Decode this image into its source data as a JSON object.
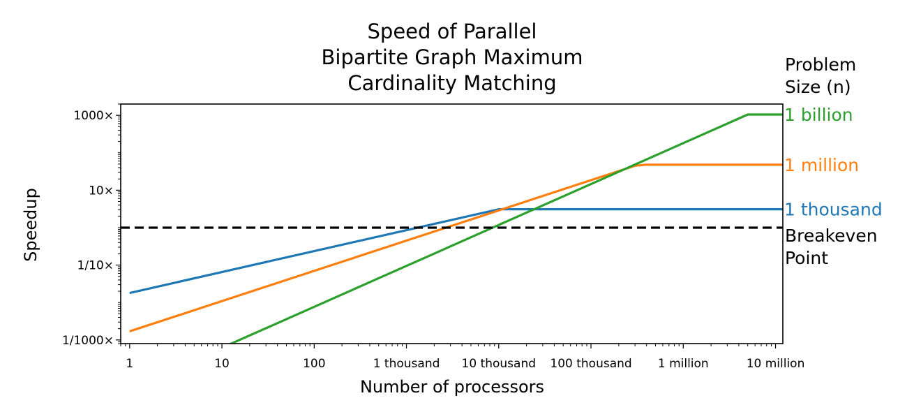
{
  "chart_data": {
    "type": "line",
    "title_lines": [
      "Speed of Parallel",
      "Bipartite Graph Maximum",
      "Cardinality Matching"
    ],
    "xlabel": "Number of processors",
    "ylabel": "Speedup",
    "x_scale": "log",
    "y_scale": "log",
    "xlim": [
      0.8,
      12000000
    ],
    "ylim": [
      0.0008,
      2000
    ],
    "x_ticks": [
      {
        "value": 1,
        "label": "1"
      },
      {
        "value": 10,
        "label": "10"
      },
      {
        "value": 100,
        "label": "100"
      },
      {
        "value": 1000,
        "label": "1 thousand"
      },
      {
        "value": 10000,
        "label": "10 thousand"
      },
      {
        "value": 100000,
        "label": "100 thousand"
      },
      {
        "value": 1000000,
        "label": "1 million"
      },
      {
        "value": 10000000,
        "label": "10 million"
      }
    ],
    "y_ticks": [
      {
        "value": 0.001,
        "label": "1/1000×"
      },
      {
        "value": 0.1,
        "label": "1/10×"
      },
      {
        "value": 10,
        "label": "10×"
      },
      {
        "value": 1000,
        "label": "1000×"
      }
    ],
    "legend_title": "Problem\nSize (n)",
    "legend_placement": "right",
    "breakeven": {
      "y": 1,
      "label": "Breakeven\nPoint",
      "color": "#000000",
      "style": "dashed"
    },
    "series": [
      {
        "name": "1 thousand",
        "color": "#1f77b4",
        "points": [
          [
            1,
            0.018
          ],
          [
            10000,
            3.1
          ],
          [
            12000000,
            3.1
          ]
        ]
      },
      {
        "name": "1 million",
        "color": "#ff7f0e",
        "points": [
          [
            1,
            0.0017
          ],
          [
            300000,
            45
          ],
          [
            400000,
            48
          ],
          [
            12000000,
            48
          ]
        ]
      },
      {
        "name": "1 billion",
        "color": "#2ca02c",
        "points": [
          [
            1,
            5e-05
          ],
          [
            5000000,
            1050
          ],
          [
            12000000,
            1050
          ]
        ]
      }
    ]
  }
}
